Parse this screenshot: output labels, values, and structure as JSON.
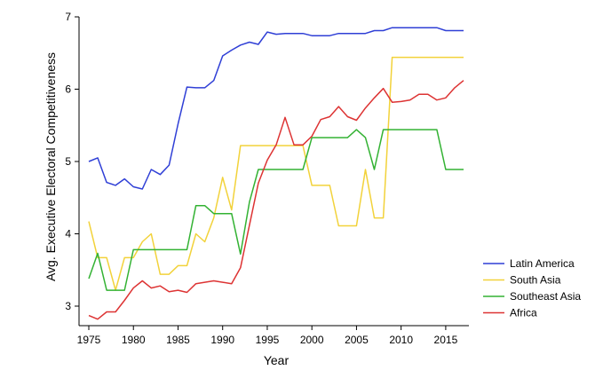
{
  "chart_data": {
    "type": "line",
    "title": "",
    "xlabel": "Year",
    "ylabel": "Avg. Executive Electoral Competitiveness",
    "xlim": [
      1975,
      2017
    ],
    "ylim": [
      2.75,
      7
    ],
    "xticks": [
      1975,
      1980,
      1985,
      1990,
      1995,
      2000,
      2005,
      2010,
      2015
    ],
    "yticks": [
      3,
      4,
      5,
      6,
      7
    ],
    "grid": false,
    "legend_position": "right",
    "x": [
      1975,
      1976,
      1977,
      1978,
      1979,
      1980,
      1981,
      1982,
      1983,
      1984,
      1985,
      1986,
      1987,
      1988,
      1989,
      1990,
      1991,
      1992,
      1993,
      1994,
      1995,
      1996,
      1997,
      1998,
      1999,
      2000,
      2001,
      2002,
      2003,
      2004,
      2005,
      2006,
      2007,
      2008,
      2009,
      2010,
      2011,
      2012,
      2013,
      2014,
      2015,
      2016,
      2017
    ],
    "series": [
      {
        "name": "Latin America",
        "color": "#2f3fd6",
        "values": [
          5.0,
          5.05,
          4.71,
          4.67,
          4.76,
          4.65,
          4.62,
          4.89,
          4.82,
          4.95,
          5.52,
          6.03,
          6.02,
          6.02,
          6.12,
          6.46,
          6.54,
          6.61,
          6.65,
          6.62,
          6.79,
          6.76,
          6.77,
          6.77,
          6.77,
          6.74,
          6.74,
          6.74,
          6.77,
          6.77,
          6.77,
          6.77,
          6.81,
          6.81,
          6.85,
          6.85,
          6.85,
          6.85,
          6.85,
          6.85,
          6.81,
          6.81,
          6.81
        ]
      },
      {
        "name": "South Asia",
        "color": "#f2d23a",
        "values": [
          4.17,
          3.67,
          3.67,
          3.22,
          3.67,
          3.67,
          3.89,
          4.0,
          3.44,
          3.44,
          3.56,
          3.56,
          4.0,
          3.89,
          4.22,
          4.78,
          4.33,
          5.22,
          5.22,
          5.22,
          5.22,
          5.22,
          5.22,
          5.22,
          5.22,
          4.67,
          4.67,
          4.67,
          4.11,
          4.11,
          4.11,
          4.89,
          4.22,
          4.22,
          6.44,
          6.44,
          6.44,
          6.44,
          6.44,
          6.44,
          6.44,
          6.44,
          6.44
        ]
      },
      {
        "name": "Southeast Asia",
        "color": "#33b233",
        "values": [
          3.38,
          3.73,
          3.22,
          3.22,
          3.22,
          3.78,
          3.78,
          3.78,
          3.78,
          3.78,
          3.78,
          3.78,
          4.39,
          4.39,
          4.28,
          4.28,
          4.28,
          3.72,
          4.44,
          4.89,
          4.89,
          4.89,
          4.89,
          4.89,
          4.89,
          5.33,
          5.33,
          5.33,
          5.33,
          5.33,
          5.44,
          5.33,
          4.89,
          5.44,
          5.44,
          5.44,
          5.44,
          5.44,
          5.44,
          5.44,
          4.89,
          4.89,
          4.89
        ]
      },
      {
        "name": "Africa",
        "color": "#dd3333",
        "values": [
          2.87,
          2.82,
          2.92,
          2.92,
          3.08,
          3.25,
          3.35,
          3.25,
          3.28,
          3.2,
          3.22,
          3.19,
          3.31,
          3.33,
          3.35,
          3.33,
          3.31,
          3.53,
          4.12,
          4.7,
          5.02,
          5.23,
          5.61,
          5.23,
          5.23,
          5.35,
          5.58,
          5.62,
          5.76,
          5.62,
          5.57,
          5.74,
          5.88,
          6.01,
          5.82,
          5.83,
          5.85,
          5.93,
          5.93,
          5.85,
          5.88,
          6.02,
          6.12
        ]
      }
    ]
  }
}
